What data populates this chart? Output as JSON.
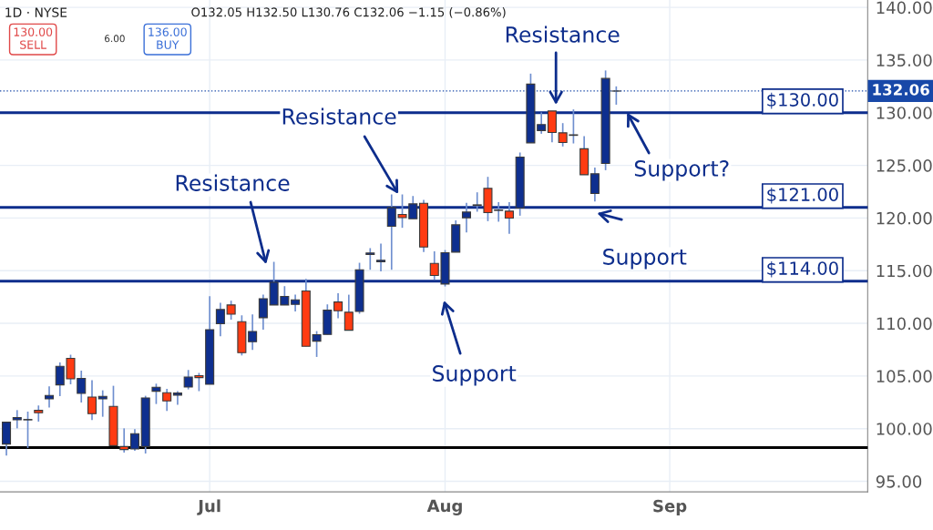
{
  "chart_data": {
    "type": "candlestick",
    "title": "1D · NYSE",
    "subtitle": "O132.05 H132.50 L130.76 C132.06 −1.15 (−0.86%)",
    "categories": [
      null,
      null,
      null,
      null,
      null,
      null,
      null,
      null,
      null,
      null,
      null,
      null,
      null,
      null,
      null,
      null,
      null,
      null,
      null,
      "Jul",
      null,
      null,
      null,
      null,
      null,
      null,
      null,
      null,
      null,
      null,
      null,
      null,
      null,
      null,
      null,
      null,
      null,
      null,
      null,
      null,
      null,
      "Aug",
      null,
      null,
      null,
      null,
      null,
      null,
      null,
      null,
      null,
      null,
      null,
      null,
      null,
      null,
      null,
      null,
      null,
      null,
      null,
      null,
      "Sep",
      null,
      null,
      null,
      null,
      null,
      null,
      null,
      null,
      null,
      null,
      null,
      null,
      null,
      null,
      null,
      null,
      null,
      null
    ],
    "ohlc": [
      [
        98.54,
        100.61,
        97.44,
        100.61
      ],
      [
        100.84,
        101.76,
        100.03,
        101.05
      ],
      [
        100.83,
        101.62,
        98.16,
        100.87
      ],
      [
        101.74,
        102.2,
        100.67,
        101.51
      ],
      [
        102.83,
        104.01,
        102.0,
        103.15
      ],
      [
        104.16,
        106.29,
        103.09,
        105.92
      ],
      [
        106.67,
        107.02,
        104.21,
        104.73
      ],
      [
        103.35,
        105.51,
        102.48,
        104.77
      ],
      [
        103.0,
        104.59,
        100.81,
        101.42
      ],
      [
        102.83,
        103.64,
        101.13,
        103.06
      ],
      [
        102.11,
        104.07,
        98.39,
        98.39
      ],
      [
        98.3,
        100.03,
        97.73,
        98.02
      ],
      [
        98.07,
        99.95,
        97.9,
        99.52
      ],
      [
        98.3,
        103.12,
        97.64,
        102.92
      ],
      [
        103.55,
        104.27,
        102.34,
        103.93
      ],
      [
        103.41,
        103.78,
        101.68,
        102.63
      ],
      [
        103.18,
        103.56,
        102.26,
        103.38
      ],
      [
        103.95,
        105.57,
        103.73,
        104.9
      ],
      [
        105.03,
        105.29,
        103.56,
        104.85
      ],
      [
        104.21,
        112.58,
        104.21,
        109.4
      ],
      [
        109.96,
        111.95,
        108.77,
        111.31
      ],
      [
        111.74,
        112.15,
        110.35,
        110.87
      ],
      [
        110.16,
        110.76,
        106.95,
        107.21
      ],
      [
        108.25,
        110.85,
        107.47,
        109.23
      ],
      [
        110.53,
        112.72,
        109.4,
        112.34
      ],
      [
        111.74,
        115.84,
        111.74,
        113.9
      ],
      [
        111.74,
        113.53,
        111.74,
        112.55
      ],
      [
        111.8,
        112.72,
        111.13,
        112.23
      ],
      [
        113.07,
        114.22,
        107.82,
        107.82
      ],
      [
        108.31,
        109.26,
        106.81,
        108.92
      ],
      [
        108.94,
        111.8,
        108.94,
        111.25
      ],
      [
        112.03,
        112.86,
        110.48,
        111.19
      ],
      [
        111.05,
        112.72,
        109.35,
        109.35
      ],
      [
        111.13,
        115.75,
        110.91,
        115.09
      ],
      [
        116.53,
        117.14,
        115.09,
        116.67
      ],
      [
        115.84,
        117.57,
        114.94,
        115.98
      ],
      [
        119.21,
        122.24,
        115.09,
        121.0
      ],
      [
        120.34,
        122.24,
        119.07,
        120.04
      ],
      [
        119.93,
        122.09,
        119.93,
        121.34
      ],
      [
        121.4,
        121.72,
        116.76,
        117.25
      ],
      [
        115.69,
        116.84,
        114.16,
        114.54
      ],
      [
        113.73,
        116.96,
        113.5,
        116.7
      ],
      [
        116.76,
        119.78,
        116.76,
        119.35
      ],
      [
        120.02,
        121.43,
        118.63,
        120.56
      ],
      [
        121.2,
        122.44,
        120.6,
        121.25
      ],
      [
        122.81,
        123.91,
        119.7,
        120.51
      ],
      [
        120.72,
        121.51,
        119.65,
        120.76
      ],
      [
        120.65,
        121.51,
        118.49,
        119.99
      ],
      [
        120.94,
        126.22,
        120.22,
        125.79
      ],
      [
        127.14,
        133.71,
        127.14,
        132.71
      ],
      [
        128.3,
        130.03,
        128.0,
        128.87
      ],
      [
        130.16,
        130.16,
        127.2,
        128.12
      ],
      [
        128.09,
        129.01,
        126.79,
        127.17
      ],
      [
        127.85,
        130.31,
        127.08,
        127.9
      ],
      [
        126.57,
        127.78,
        124.11,
        124.11
      ],
      [
        122.33,
        124.78,
        121.57,
        124.2
      ],
      [
        125.18,
        134.01,
        124.54,
        133.25
      ],
      [
        132.05,
        132.5,
        130.76,
        132.06
      ],
      null,
      null,
      null,
      null,
      null,
      null,
      null,
      null,
      null,
      null,
      null,
      null,
      null,
      null,
      null,
      null,
      null,
      null,
      null,
      null,
      null,
      null,
      null
    ],
    "colors": [
      "#0e2f8f",
      "#0e2f8f",
      "#0e2f8f",
      "#ff3b12",
      "#0e2f8f",
      "#0e2f8f",
      "#ff3b12",
      "#0e2f8f",
      "#ff3b12",
      "#0e2f8f",
      "#ff3b12",
      "#ff3b12",
      "#0e2f8f",
      "#0e2f8f",
      "#0e2f8f",
      "#ff3b12",
      "#0e2f8f",
      "#0e2f8f",
      "#ff3b12",
      "#0e2f8f",
      "#0e2f8f",
      "#ff3b12",
      "#ff3b12",
      "#0e2f8f",
      "#0e2f8f",
      "#0e2f8f",
      "#0e2f8f",
      "#0e2f8f",
      "#ff3b12",
      "#0e2f8f",
      "#0e2f8f",
      "#ff3b12",
      "#ff3b12",
      "#0e2f8f",
      "#0e2f8f",
      "#0e2f8f",
      "#0e2f8f",
      "#ff3b12",
      "#0e2f8f",
      "#ff3b12",
      "#ff3b12",
      "#0e2f8f",
      "#0e2f8f",
      "#0e2f8f",
      "#0e2f8f",
      "#ff3b12",
      "#0e2f8f",
      "#ff3b12",
      "#0e2f8f",
      "#0e2f8f",
      "#0e2f8f",
      "#ff3b12",
      "#ff3b12",
      "#0e2f8f",
      "#ff3b12",
      "#0e2f8f",
      "#0e2f8f",
      "#0e2f8f",
      null,
      null,
      null,
      null,
      null,
      null,
      null,
      null,
      null,
      null,
      null,
      null,
      null,
      null,
      null,
      null,
      null,
      null,
      null,
      null,
      null,
      null,
      null
    ],
    "ylim": [
      94,
      140.7
    ],
    "yticks": [
      {
        "value": 95,
        "label": "95.00"
      },
      {
        "value": 100,
        "label": "100.00"
      },
      {
        "value": 105,
        "label": "105.00"
      },
      {
        "value": 110,
        "label": "110.00"
      },
      {
        "value": 115,
        "label": "115.00"
      },
      {
        "value": 120,
        "label": "120.00"
      },
      {
        "value": 125,
        "label": "125.00"
      },
      {
        "value": 130,
        "label": "130.00"
      },
      {
        "value": 135,
        "label": "135.00"
      },
      {
        "value": 140,
        "label": "140.00"
      }
    ],
    "grid": true,
    "ref_lines": [
      {
        "axis": "y",
        "value": 130,
        "label": "$130.00",
        "color": "#0d2d8c"
      },
      {
        "axis": "y",
        "value": 121,
        "label": "$121.00",
        "color": "#0d2d8c"
      },
      {
        "axis": "y",
        "value": 114,
        "label": "$114.00",
        "color": "#0d2d8c"
      },
      {
        "axis": "y",
        "value": 98.2,
        "color": "#000000"
      },
      {
        "axis": "y",
        "value": 132.06,
        "label": "132.06",
        "color": "#1848a8",
        "line_style": "dotted"
      }
    ],
    "annotations": [
      "Resistance",
      "Resistance",
      "Resistance",
      {
        "text": "Support?",
        "y": 130
      },
      "Support",
      "Support",
      "130.00\nSELL",
      "6.00",
      "136.00\nBUY"
    ]
  }
}
